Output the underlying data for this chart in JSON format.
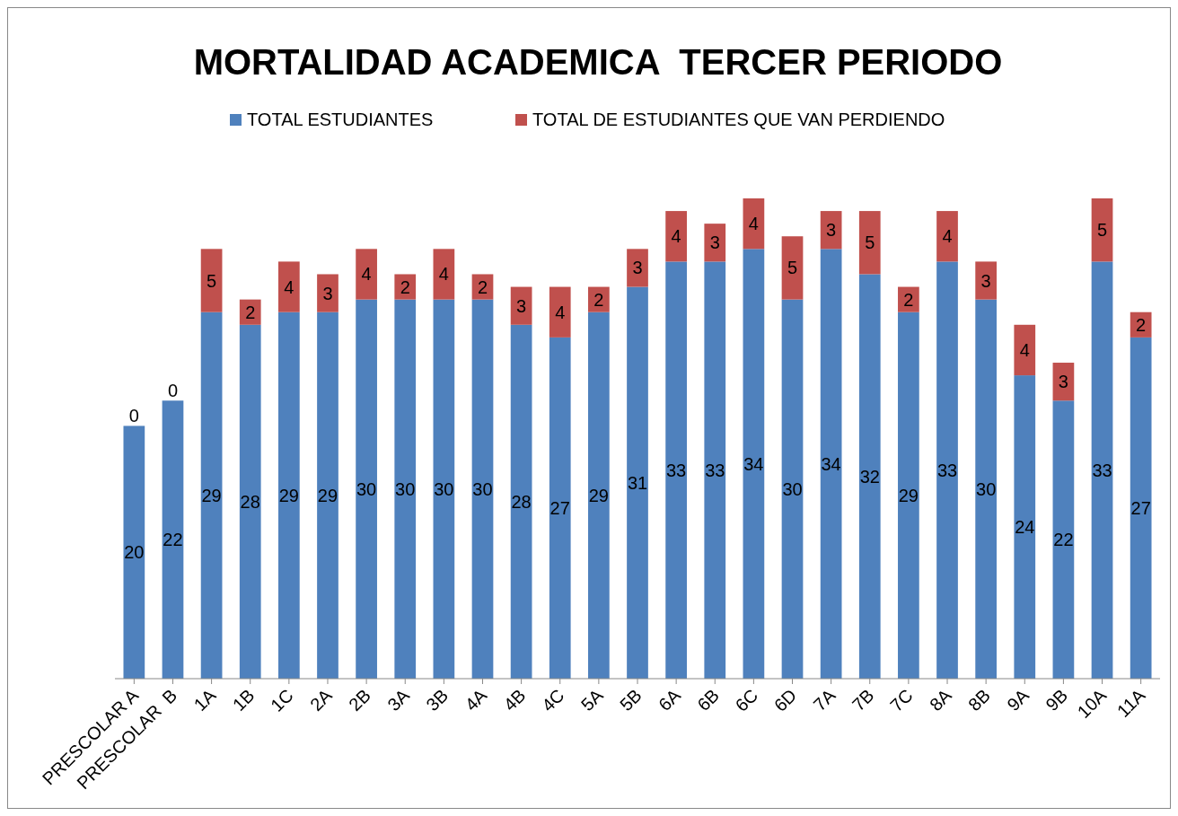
{
  "chart_data": {
    "type": "bar",
    "title": "MORTALIDAD ACADEMICA  TERCER PERIODO",
    "categories": [
      "PRESCOLAR A",
      "PRESCOLAR  B",
      "1A",
      "1B",
      "1C",
      "2A",
      "2B",
      "3A",
      "3B",
      "4A",
      "4B",
      "4C",
      "5A",
      "5B",
      "6A",
      "6B",
      "6C",
      "6D",
      "7A",
      "7B",
      "7C",
      "8A",
      "8B",
      "9A",
      "9B",
      "10A",
      "11A"
    ],
    "series": [
      {
        "name": "TOTAL ESTUDIANTES",
        "color": "#4f81bd",
        "values": [
          20,
          22,
          29,
          28,
          29,
          29,
          30,
          30,
          30,
          30,
          28,
          27,
          29,
          31,
          33,
          33,
          34,
          30,
          34,
          32,
          29,
          33,
          30,
          24,
          22,
          33,
          27
        ]
      },
      {
        "name": "TOTAL DE ESTUDIANTES QUE VAN PERDIENDO",
        "color": "#c0504d",
        "values": [
          0,
          0,
          5,
          2,
          4,
          3,
          4,
          2,
          4,
          2,
          3,
          4,
          2,
          3,
          4,
          3,
          4,
          5,
          3,
          5,
          2,
          4,
          3,
          4,
          3,
          5,
          2
        ]
      }
    ],
    "stacked": true,
    "data_labels": true,
    "legend": "top"
  }
}
